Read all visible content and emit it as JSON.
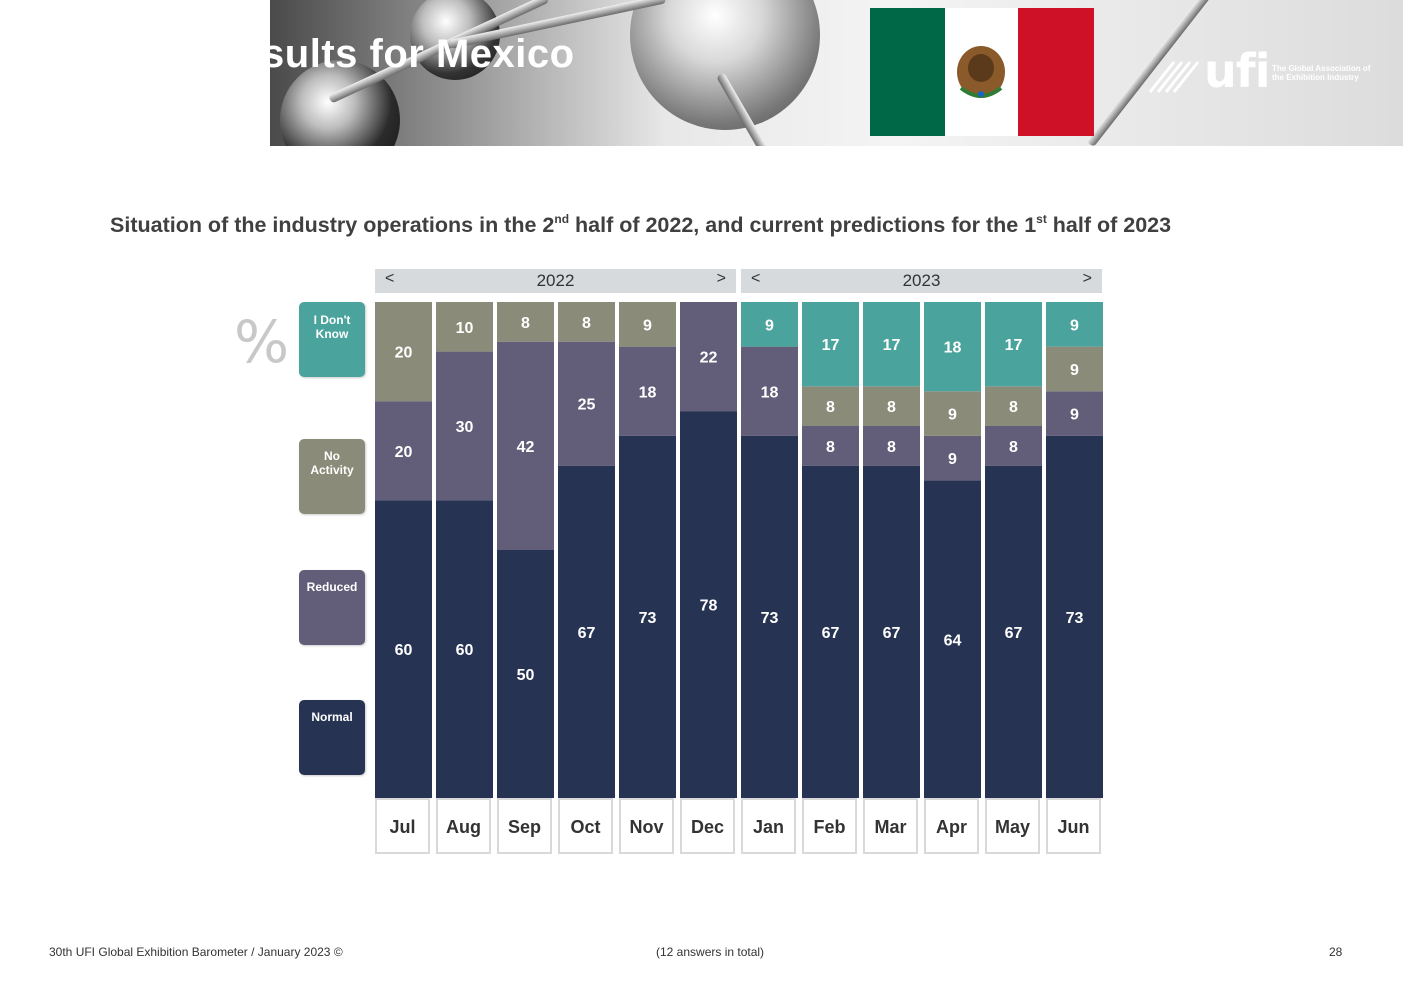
{
  "header": {
    "title": "Detailed results for Mexico",
    "logo_text": "ufi",
    "logo_tagline": "The Global Association of the Exhibition Industry"
  },
  "subtitle": {
    "part1": "Situation of the industry operations in the 2",
    "sup1": "nd",
    "part2": " half of 2022, and current predictions for the 1",
    "sup2": "st",
    "part3": "  half of 2023"
  },
  "percent_symbol": "%",
  "navigation": {
    "prev_symbol": "<",
    "next_symbol": ">",
    "years": [
      "2022",
      "2023"
    ]
  },
  "legend": [
    {
      "label": "I Don't Know",
      "color": "#4aa39c"
    },
    {
      "label": "No Activity",
      "color": "#8b8b79"
    },
    {
      "label": "Reduced",
      "color": "#625d78"
    },
    {
      "label": "Normal",
      "color": "#263352"
    }
  ],
  "chart_data": {
    "type": "bar",
    "stacked": true,
    "unit": "%",
    "categories": [
      "Jul",
      "Aug",
      "Sep",
      "Oct",
      "Nov",
      "Dec",
      "Jan",
      "Feb",
      "Mar",
      "Apr",
      "May",
      "Jun"
    ],
    "groups": [
      {
        "year": "2022",
        "categories": [
          "Jul",
          "Aug",
          "Sep",
          "Oct",
          "Nov",
          "Dec"
        ]
      },
      {
        "year": "2023",
        "categories": [
          "Jan",
          "Feb",
          "Mar",
          "Apr",
          "May",
          "Jun"
        ]
      }
    ],
    "series": [
      {
        "name": "Normal",
        "color": "#263352",
        "values": [
          60,
          60,
          50,
          67,
          73,
          78,
          73,
          67,
          67,
          64,
          67,
          73
        ]
      },
      {
        "name": "Reduced",
        "color": "#625d78",
        "values": [
          20,
          30,
          42,
          25,
          18,
          22,
          18,
          8,
          8,
          9,
          8,
          9
        ]
      },
      {
        "name": "No Activity",
        "color": "#8b8b79",
        "values": [
          20,
          10,
          8,
          8,
          9,
          0,
          0,
          8,
          8,
          9,
          8,
          9
        ]
      },
      {
        "name": "I Don't Know",
        "color": "#4aa39c",
        "values": [
          0,
          0,
          0,
          0,
          0,
          0,
          9,
          17,
          17,
          18,
          17,
          9
        ]
      }
    ],
    "ylim": [
      0,
      100
    ]
  },
  "footer": {
    "left": "30th UFI Global Exhibition Barometer / January 2023 ©",
    "center": "(12 answers in total)",
    "page": "28"
  }
}
